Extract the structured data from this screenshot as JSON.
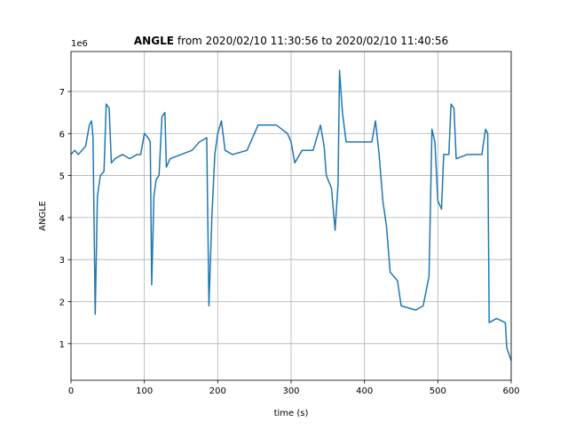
{
  "chart_data": {
    "type": "line",
    "title_bold": "ANGLE",
    "title": "from 2020/02/10 11:30:56 to 2020/02/10 11:40:56",
    "xlabel": "time (s)",
    "ylabel": "ANGLE",
    "y_offset": "1e6",
    "x": [
      0,
      5,
      10,
      15,
      20,
      25,
      28,
      30,
      33,
      36,
      40,
      45,
      48,
      52,
      55,
      60,
      70,
      80,
      90,
      95,
      100,
      105,
      108,
      110,
      113,
      116,
      120,
      124,
      128,
      130,
      135,
      150,
      165,
      175,
      185,
      188,
      192,
      196,
      200,
      205,
      210,
      220,
      240,
      255,
      280,
      295,
      300,
      305,
      315,
      330,
      340,
      345,
      348,
      355,
      360,
      364,
      366,
      370,
      375,
      390,
      410,
      415,
      420,
      425,
      430,
      435,
      445,
      450,
      470,
      480,
      488,
      492,
      496,
      500,
      505,
      508,
      515,
      518,
      522,
      525,
      540,
      560,
      565,
      568,
      570,
      580,
      592,
      594,
      600
    ],
    "series": [
      {
        "name": "ANGLE",
        "color": "#1f77b4",
        "values": [
          5.5,
          5.6,
          5.5,
          5.6,
          5.7,
          6.2,
          6.3,
          5.9,
          1.7,
          4.5,
          5.0,
          5.1,
          6.7,
          6.6,
          5.3,
          5.4,
          5.5,
          5.4,
          5.5,
          5.5,
          6.0,
          5.9,
          5.8,
          2.4,
          4.5,
          4.9,
          5.0,
          6.4,
          6.5,
          5.2,
          5.4,
          5.5,
          5.6,
          5.8,
          5.9,
          1.9,
          4.0,
          5.5,
          6.0,
          6.3,
          5.6,
          5.5,
          5.6,
          6.2,
          6.2,
          6.0,
          5.8,
          5.3,
          5.6,
          5.6,
          6.2,
          5.7,
          5.0,
          4.7,
          3.7,
          4.8,
          7.5,
          6.5,
          5.8,
          5.8,
          5.8,
          6.3,
          5.5,
          4.4,
          3.8,
          2.7,
          2.5,
          1.9,
          1.8,
          1.9,
          2.6,
          6.1,
          5.8,
          4.4,
          4.2,
          5.5,
          5.5,
          6.7,
          6.6,
          5.4,
          5.5,
          5.5,
          6.1,
          6.0,
          1.5,
          1.6,
          1.5,
          0.9,
          0.6
        ]
      }
    ],
    "xlim": [
      0,
      600
    ],
    "xticks": [
      0,
      100,
      200,
      300,
      400,
      500,
      600
    ],
    "ylim": [
      0.13,
      7.95
    ],
    "yticks": [
      1,
      2,
      3,
      4,
      5,
      6,
      7
    ],
    "grid": true
  }
}
